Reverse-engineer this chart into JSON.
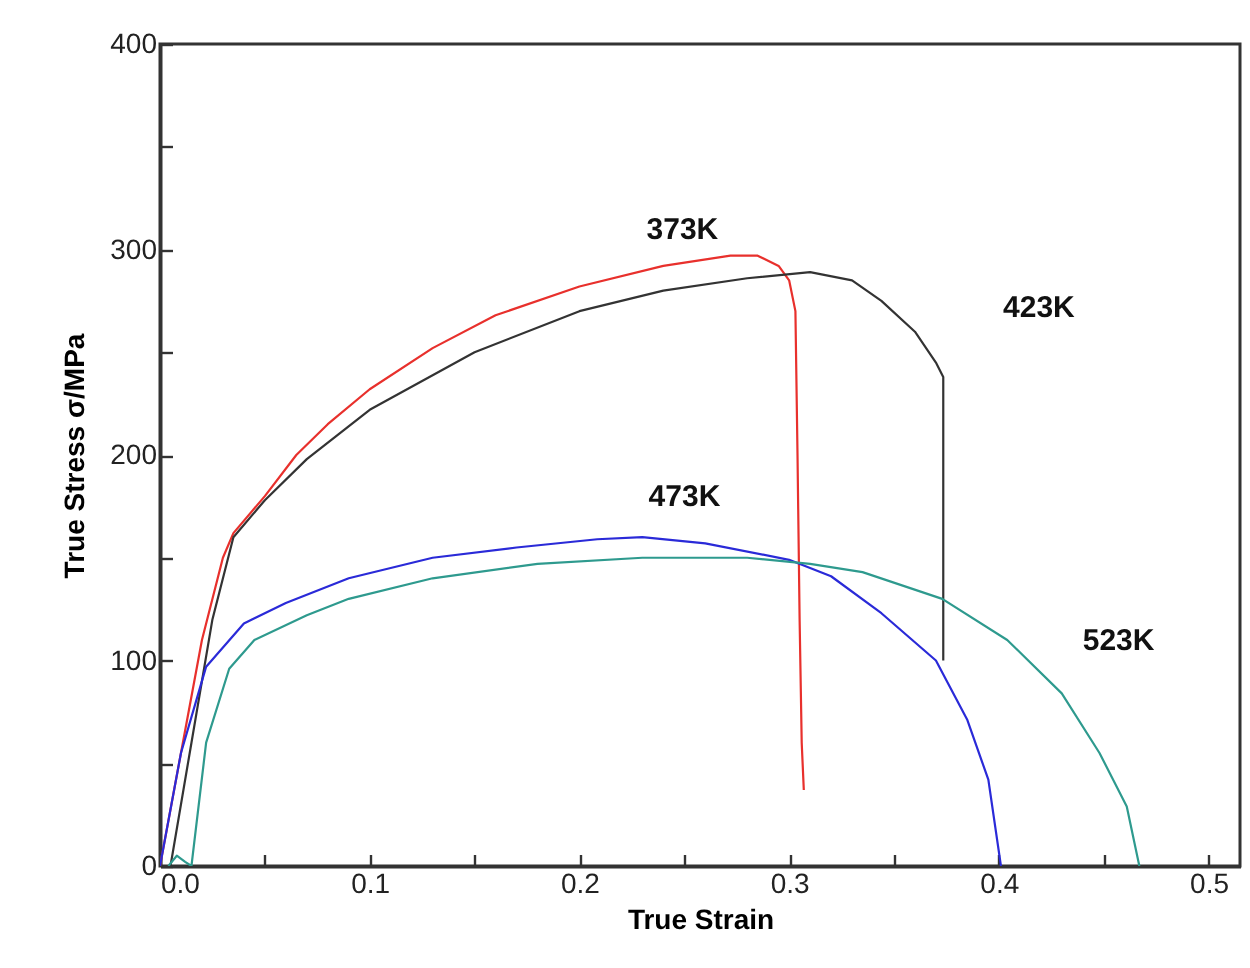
{
  "chart_data": {
    "type": "line",
    "xlabel": "True Strain",
    "ylabel": "True Stress σ/MPa",
    "xlim": [
      0,
      0.515
    ],
    "ylim": [
      0,
      400
    ],
    "xticks": [
      {
        "value": 0,
        "label": "0.0"
      },
      {
        "value": 0.05,
        "label": null
      },
      0.1,
      {
        "value": 0.15,
        "label": null
      },
      0.2,
      {
        "value": 0.25,
        "label": null
      },
      0.3,
      {
        "value": 0.35,
        "label": null
      },
      0.4,
      {
        "value": 0.45,
        "label": null
      },
      0.5
    ],
    "yticks": [
      0,
      {
        "value": 50,
        "label": null
      },
      100,
      {
        "value": 150,
        "label": null
      },
      200,
      {
        "value": 250,
        "label": null
      },
      300,
      {
        "value": 350,
        "label": null
      },
      400
    ],
    "marker": "none",
    "line_style": "solid",
    "grid": false,
    "legend": false,
    "series": [
      {
        "name": "373K",
        "color": "#e8302c",
        "x": [
          0,
          0.01,
          0.02,
          0.03,
          0.035,
          0.05,
          0.065,
          0.08,
          0.1,
          0.13,
          0.16,
          0.2,
          0.24,
          0.272,
          0.285,
          0.295,
          0.3,
          0.303,
          0.304,
          0.305,
          0.306,
          0.307
        ],
        "values": [
          0,
          55,
          110,
          150,
          162,
          180,
          200,
          215,
          232,
          252,
          268,
          282,
          292,
          297,
          297,
          292,
          285,
          270,
          200,
          120,
          60,
          37
        ]
      },
      {
        "name": "423K",
        "color": "#333333",
        "x": [
          0.005,
          0.015,
          0.025,
          0.035,
          0.05,
          0.07,
          0.1,
          0.15,
          0.2,
          0.24,
          0.28,
          0.31,
          0.33,
          0.344,
          0.36,
          0.37,
          0.3735,
          0.3735
        ],
        "values": [
          0,
          60,
          120,
          160,
          178,
          198,
          222,
          250,
          270,
          280,
          286,
          289,
          285,
          275,
          260,
          245,
          238,
          100
        ]
      },
      {
        "name": "473K",
        "color": "#2a2ad8",
        "x": [
          0,
          0.01,
          0.022,
          0.04,
          0.06,
          0.09,
          0.13,
          0.17,
          0.2085,
          0.23,
          0.26,
          0.3,
          0.32,
          0.344,
          0.37,
          0.385,
          0.395,
          0.401
        ],
        "values": [
          0,
          55,
          97,
          118,
          128,
          140,
          150,
          155,
          159,
          160,
          157,
          149,
          141,
          123,
          100,
          71,
          42,
          0
        ]
      },
      {
        "name": "523K",
        "color": "#2e9a8e",
        "x": [
          0.004,
          0.008,
          0.012,
          0.015,
          0.022,
          0.033,
          0.045,
          0.07,
          0.09,
          0.13,
          0.18,
          0.23,
          0.28,
          0.31,
          0.335,
          0.373,
          0.404,
          0.43,
          0.448,
          0.461,
          0.467
        ],
        "values": [
          0,
          5,
          2,
          0,
          60,
          96,
          110,
          122,
          130,
          140,
          147,
          150,
          150,
          147,
          143,
          130,
          110,
          84,
          55,
          29,
          0
        ]
      }
    ]
  }
}
